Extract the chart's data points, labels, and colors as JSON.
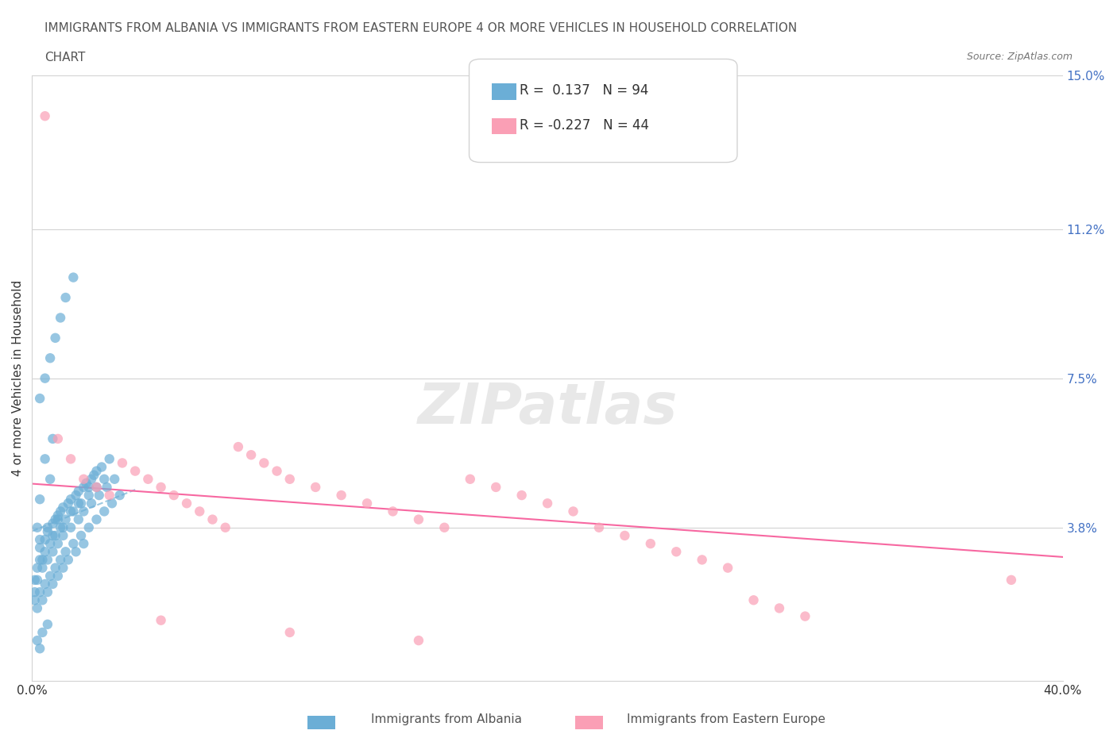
{
  "title_line1": "IMMIGRANTS FROM ALBANIA VS IMMIGRANTS FROM EASTERN EUROPE 4 OR MORE VEHICLES IN HOUSEHOLD CORRELATION",
  "title_line2": "CHART",
  "source_text": "Source: ZipAtlas.com",
  "xlabel": "",
  "ylabel": "4 or more Vehicles in Household",
  "xlim": [
    0.0,
    0.4
  ],
  "ylim": [
    0.0,
    0.15
  ],
  "xticks": [
    0.0,
    0.05,
    0.1,
    0.15,
    0.2,
    0.25,
    0.3,
    0.35,
    0.4
  ],
  "xticklabels": [
    "0.0%",
    "",
    "",
    "",
    "",
    "",
    "",
    "",
    "40.0%"
  ],
  "ytick_positions": [
    0.038,
    0.075,
    0.112,
    0.15
  ],
  "ytick_labels": [
    "3.8%",
    "7.5%",
    "11.2%",
    "15.0%"
  ],
  "legend_label1": "Immigrants from Albania",
  "legend_label2": "Immigrants from Eastern Europe",
  "R1": 0.137,
  "N1": 94,
  "R2": -0.227,
  "N2": 44,
  "color_albania": "#6baed6",
  "color_eastern": "#fa9fb5",
  "color_line1": "#9ecae1",
  "color_line2": "#f768a1",
  "watermark": "ZIPatlas",
  "albania_x": [
    0.005,
    0.008,
    0.003,
    0.002,
    0.01,
    0.015,
    0.005,
    0.012,
    0.007,
    0.018,
    0.022,
    0.025,
    0.008,
    0.003,
    0.004,
    0.006,
    0.009,
    0.011,
    0.014,
    0.017,
    0.02,
    0.023,
    0.002,
    0.001,
    0.003,
    0.006,
    0.008,
    0.01,
    0.012,
    0.015,
    0.018,
    0.021,
    0.024,
    0.027,
    0.03,
    0.003,
    0.005,
    0.007,
    0.009,
    0.011,
    0.013,
    0.016,
    0.019,
    0.022,
    0.025,
    0.028,
    0.001,
    0.002,
    0.004,
    0.006,
    0.008,
    0.01,
    0.012,
    0.015,
    0.018,
    0.02,
    0.023,
    0.026,
    0.029,
    0.032,
    0.001,
    0.003,
    0.005,
    0.007,
    0.009,
    0.011,
    0.013,
    0.016,
    0.019,
    0.022,
    0.025,
    0.028,
    0.031,
    0.034,
    0.002,
    0.004,
    0.006,
    0.008,
    0.01,
    0.012,
    0.014,
    0.017,
    0.02,
    0.003,
    0.005,
    0.007,
    0.009,
    0.011,
    0.013,
    0.016,
    0.002,
    0.004,
    0.006,
    0.003
  ],
  "albania_y": [
    0.055,
    0.06,
    0.045,
    0.038,
    0.04,
    0.042,
    0.035,
    0.038,
    0.05,
    0.044,
    0.048,
    0.052,
    0.036,
    0.033,
    0.03,
    0.038,
    0.04,
    0.042,
    0.044,
    0.046,
    0.048,
    0.05,
    0.028,
    0.025,
    0.035,
    0.037,
    0.039,
    0.041,
    0.043,
    0.045,
    0.047,
    0.049,
    0.051,
    0.053,
    0.055,
    0.03,
    0.032,
    0.034,
    0.036,
    0.038,
    0.04,
    0.042,
    0.044,
    0.046,
    0.048,
    0.05,
    0.022,
    0.025,
    0.028,
    0.03,
    0.032,
    0.034,
    0.036,
    0.038,
    0.04,
    0.042,
    0.044,
    0.046,
    0.048,
    0.05,
    0.02,
    0.022,
    0.024,
    0.026,
    0.028,
    0.03,
    0.032,
    0.034,
    0.036,
    0.038,
    0.04,
    0.042,
    0.044,
    0.046,
    0.018,
    0.02,
    0.022,
    0.024,
    0.026,
    0.028,
    0.03,
    0.032,
    0.034,
    0.07,
    0.075,
    0.08,
    0.085,
    0.09,
    0.095,
    0.1,
    0.01,
    0.012,
    0.014,
    0.008
  ],
  "eastern_x": [
    0.005,
    0.01,
    0.015,
    0.02,
    0.025,
    0.03,
    0.035,
    0.04,
    0.045,
    0.05,
    0.055,
    0.06,
    0.065,
    0.07,
    0.075,
    0.08,
    0.085,
    0.09,
    0.095,
    0.1,
    0.11,
    0.12,
    0.13,
    0.14,
    0.15,
    0.16,
    0.17,
    0.18,
    0.19,
    0.2,
    0.21,
    0.22,
    0.23,
    0.24,
    0.25,
    0.26,
    0.27,
    0.28,
    0.29,
    0.3,
    0.05,
    0.1,
    0.15,
    0.38
  ],
  "eastern_y": [
    0.14,
    0.06,
    0.055,
    0.05,
    0.048,
    0.046,
    0.054,
    0.052,
    0.05,
    0.048,
    0.046,
    0.044,
    0.042,
    0.04,
    0.038,
    0.058,
    0.056,
    0.054,
    0.052,
    0.05,
    0.048,
    0.046,
    0.044,
    0.042,
    0.04,
    0.038,
    0.05,
    0.048,
    0.046,
    0.044,
    0.042,
    0.038,
    0.036,
    0.034,
    0.032,
    0.03,
    0.028,
    0.02,
    0.018,
    0.016,
    0.015,
    0.012,
    0.01,
    0.025
  ]
}
